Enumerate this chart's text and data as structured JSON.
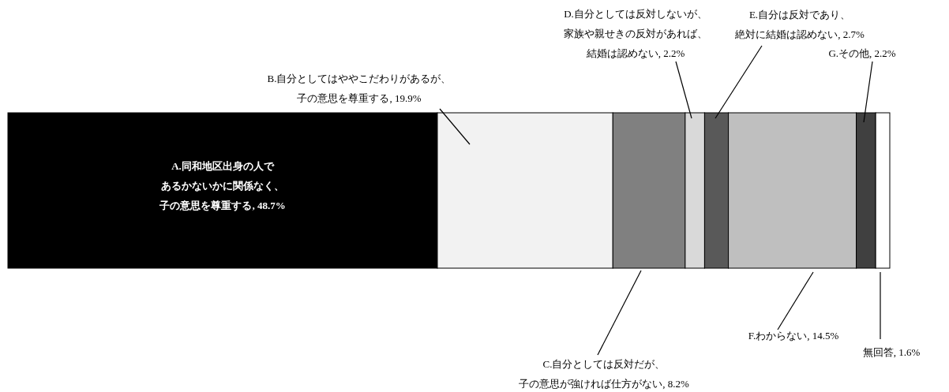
{
  "chart_data": {
    "type": "bar",
    "orientation": "horizontal",
    "stacked": true,
    "categories": [
      null
    ],
    "xlim": [
      0,
      100
    ],
    "tick_labels": false,
    "series": [
      {
        "color": "#000000",
        "values": [
          48.7
        ],
        "value_labels": [
          "A.同和地区出身の人であるかないかに関係なく、子の意思を尊重する, 48.7%"
        ]
      },
      {
        "color": "#f2f2f2",
        "values": [
          19.9
        ],
        "value_labels": [
          "B.自分としてはややこだわりがあるが、子の意思を尊重する, 19.9%"
        ]
      },
      {
        "color": "#808080",
        "values": [
          8.2
        ],
        "value_labels": [
          "C.自分としては反対だが、子の意思が強ければ仕方がない, 8.2%"
        ]
      },
      {
        "color": "#d9d9d9",
        "values": [
          2.2
        ],
        "value_labels": [
          "D.自分としては反対しないが、家族や親せきの反対があれば、結婚は認めない, 2.2%"
        ]
      },
      {
        "color": "#595959",
        "values": [
          2.7
        ],
        "value_labels": [
          "E.自分は反対であり、絶対に結婚は認めない, 2.7%"
        ]
      },
      {
        "color": "#bfbfbf",
        "values": [
          14.5
        ],
        "value_labels": [
          "F.わからない, 14.5%"
        ]
      },
      {
        "color": "#404040",
        "values": [
          2.2
        ],
        "value_labels": [
          "G.その他, 2.2%"
        ]
      },
      {
        "color": "#ffffff",
        "values": [
          1.6
        ],
        "value_labels": [
          "無回答, 1.6%"
        ]
      }
    ]
  }
}
